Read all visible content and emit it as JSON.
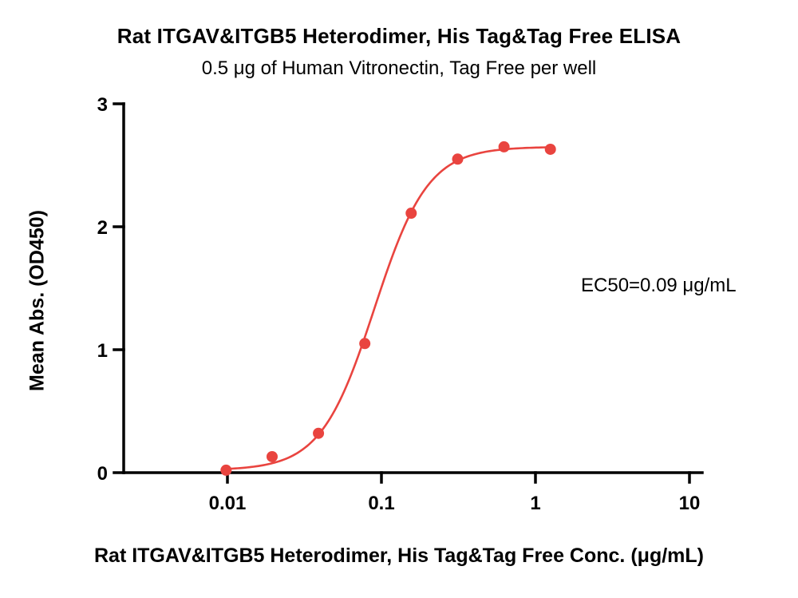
{
  "chart_data": {
    "type": "scatter",
    "title": "Rat ITGAV&ITGB5 Heterodimer, His Tag&Tag Free ELISA",
    "subtitle": "0.5 μg of Human Vitronectin, Tag Free per well",
    "xlabel": "Rat ITGAV&ITGB5 Heterodimer, His Tag&Tag Free Conc. (μg/mL)",
    "ylabel": "Mean Abs. (OD450)",
    "annotation": "EC50=0.09 μg/mL",
    "x_scale": "log",
    "grid": false,
    "legend": false,
    "xlim": [
      0.002,
      12
    ],
    "ylim": [
      0,
      3
    ],
    "x_ticks": [
      0.01,
      0.1,
      1,
      10
    ],
    "x_tick_labels": [
      "0.01",
      "0.1",
      "1",
      "10"
    ],
    "y_ticks": [
      0,
      1,
      2,
      3
    ],
    "y_tick_labels": [
      "0",
      "1",
      "2",
      "3"
    ],
    "x": [
      0.0098,
      0.0195,
      0.039,
      0.078,
      0.156,
      0.3125,
      0.625,
      1.25
    ],
    "y": [
      0.02,
      0.13,
      0.32,
      1.05,
      2.11,
      2.55,
      2.65,
      2.63
    ],
    "ec50": 0.09,
    "fit": {
      "model": "4PL",
      "bottom": 0.02,
      "top": 2.65,
      "ec50": 0.09,
      "hill": 2.5
    },
    "series_color": "#E9443F",
    "axis_color": "#000000"
  }
}
